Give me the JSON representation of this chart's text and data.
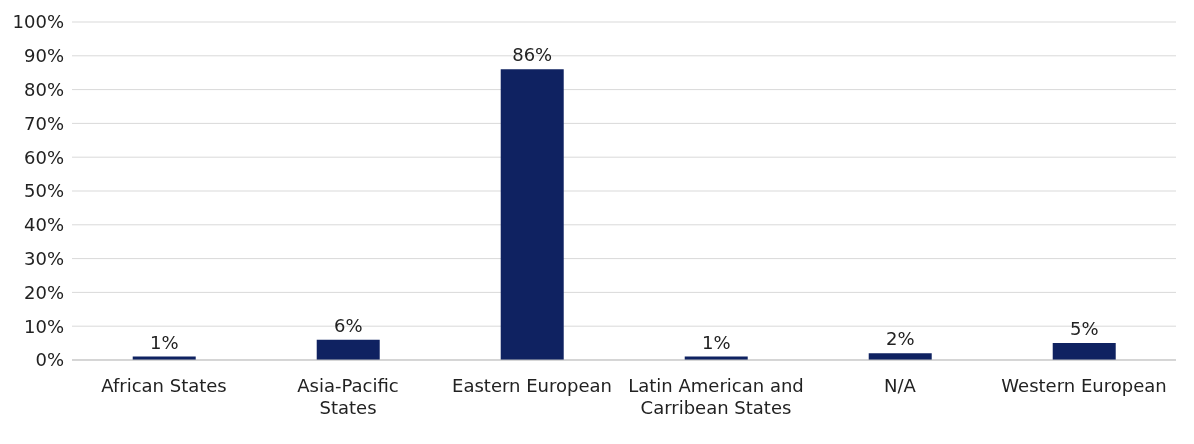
{
  "chart_data": {
    "type": "bar",
    "categories": [
      "African States",
      "Asia-Pacific States",
      "Eastern European",
      "Latin American and Carribean States",
      "N/A",
      "Western European"
    ],
    "values": [
      1,
      6,
      86,
      1,
      2,
      5
    ],
    "value_labels": [
      "1%",
      "6%",
      "86%",
      "1%",
      "2%",
      "5%"
    ],
    "color": "#0f2261",
    "ylim": [
      0,
      100
    ],
    "yticks": [
      {
        "value": 0,
        "label": "0%"
      },
      {
        "value": 10,
        "label": "10%"
      },
      {
        "value": 20,
        "label": "20%"
      },
      {
        "value": 30,
        "label": "30%"
      },
      {
        "value": 40,
        "label": "40%"
      },
      {
        "value": 50,
        "label": "50%"
      },
      {
        "value": 60,
        "label": "60%"
      },
      {
        "value": 70,
        "label": "70%"
      },
      {
        "value": 80,
        "label": "80%"
      },
      {
        "value": 90,
        "label": "90%"
      },
      {
        "value": 100,
        "label": "100%"
      }
    ],
    "grid": "y"
  }
}
